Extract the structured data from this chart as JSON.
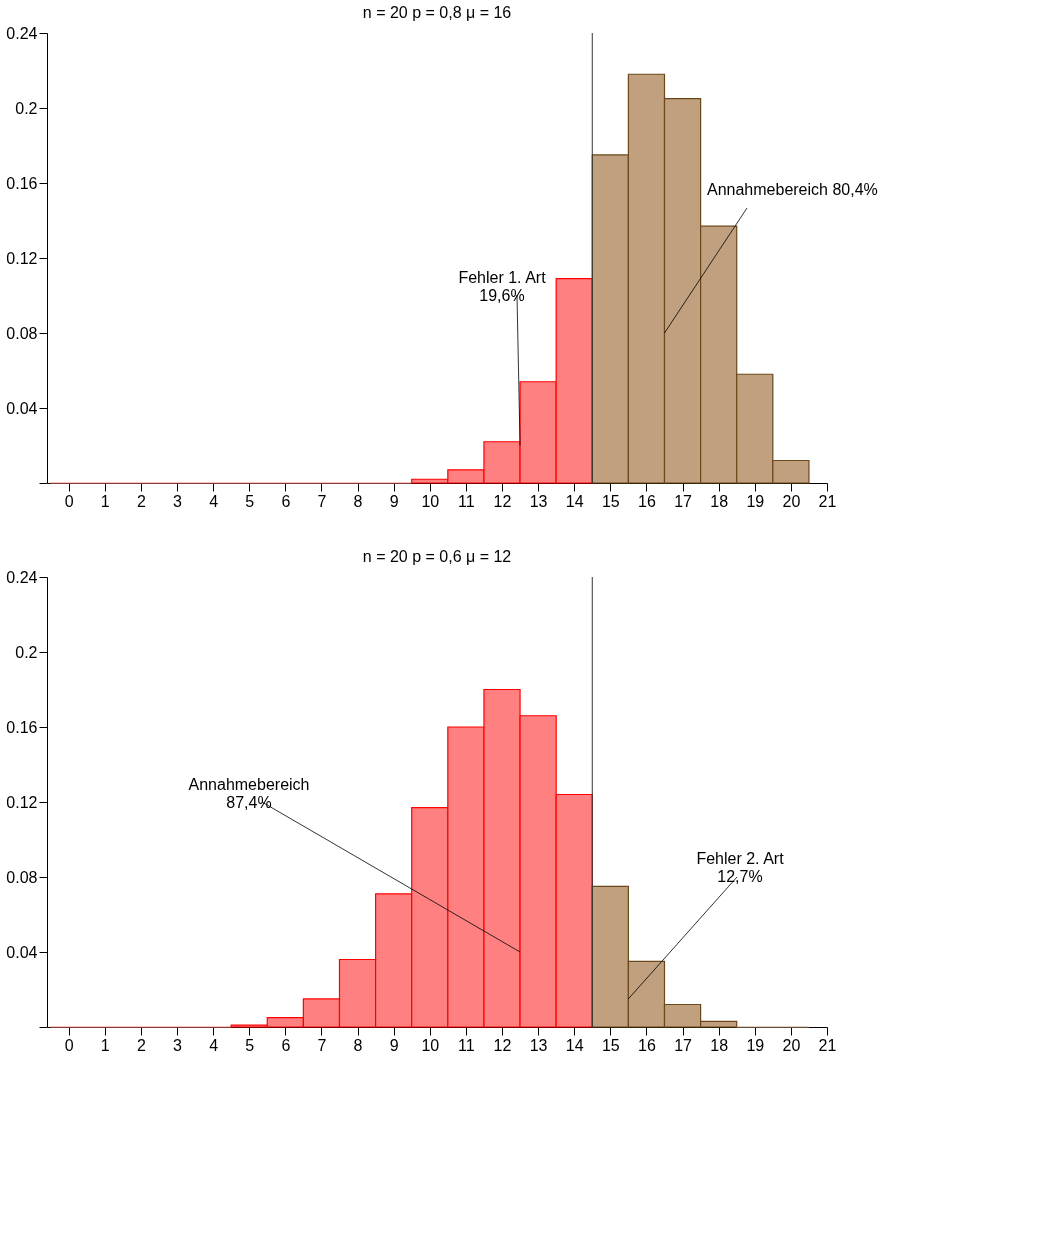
{
  "chart_data": [
    {
      "type": "bar",
      "title": "n = 20   p = 0,8   μ = 16",
      "x": [
        0,
        1,
        2,
        3,
        4,
        5,
        6,
        7,
        8,
        9,
        10,
        11,
        12,
        13,
        14,
        15,
        16,
        17,
        18,
        19,
        20
      ],
      "values": [
        0,
        0,
        0,
        0,
        0,
        0,
        0,
        0,
        0,
        0,
        0.002,
        0.007,
        0.022,
        0.054,
        0.109,
        0.175,
        0.218,
        0.205,
        0.137,
        0.058,
        0.012
      ],
      "colors": [
        "#ff8080",
        "#ff8080",
        "#ff8080",
        "#ff8080",
        "#ff8080",
        "#ff8080",
        "#ff8080",
        "#ff8080",
        "#ff8080",
        "#ff8080",
        "#ff8080",
        "#ff8080",
        "#ff8080",
        "#ff8080",
        "#ff8080",
        "#c1a07f",
        "#c1a07f",
        "#c1a07f",
        "#c1a07f",
        "#c1a07f",
        "#c1a07f"
      ],
      "xlim": [
        -0.6,
        21
      ],
      "xticks": [
        0,
        1,
        2,
        3,
        4,
        5,
        6,
        7,
        8,
        9,
        10,
        11,
        12,
        13,
        14,
        15,
        16,
        17,
        18,
        19,
        20,
        21
      ],
      "ylim": [
        0,
        0.24
      ],
      "yticks": [
        {
          "value": 0,
          "label": null
        },
        0.04,
        0.08,
        0.12,
        0.16,
        0.2,
        0.24
      ],
      "ref_lines": [
        {
          "axis": "x",
          "value": 14.5
        }
      ],
      "annotations": [
        {
          "text": "Fehler 1. Art\n19,6%",
          "x": 12.5,
          "y": 0.02
        },
        {
          "text": "Annahmebereich 80,4%",
          "x": 16.5,
          "y": 0.08
        }
      ],
      "grid": false
    },
    {
      "type": "bar",
      "title": "n = 20   p = 0,6   μ = 12",
      "x": [
        0,
        1,
        2,
        3,
        4,
        5,
        6,
        7,
        8,
        9,
        10,
        11,
        12,
        13,
        14,
        15,
        16,
        17,
        18,
        19,
        20
      ],
      "values": [
        0,
        0,
        0,
        0,
        0,
        0.001,
        0.005,
        0.015,
        0.036,
        0.071,
        0.117,
        0.16,
        0.18,
        0.166,
        0.124,
        0.075,
        0.035,
        0.012,
        0.003,
        0,
        0
      ],
      "colors": [
        "#ff8080",
        "#ff8080",
        "#ff8080",
        "#ff8080",
        "#ff8080",
        "#ff8080",
        "#ff8080",
        "#ff8080",
        "#ff8080",
        "#ff8080",
        "#ff8080",
        "#ff8080",
        "#ff8080",
        "#ff8080",
        "#ff8080",
        "#c1a07f",
        "#c1a07f",
        "#c1a07f",
        "#c1a07f",
        "#c1a07f",
        "#c1a07f"
      ],
      "xlim": [
        -0.6,
        21
      ],
      "xticks": [
        0,
        1,
        2,
        3,
        4,
        5,
        6,
        7,
        8,
        9,
        10,
        11,
        12,
        13,
        14,
        15,
        16,
        17,
        18,
        19,
        20,
        21
      ],
      "ylim": [
        0,
        0.24
      ],
      "yticks": [
        {
          "value": 0,
          "label": null
        },
        0.04,
        0.08,
        0.12,
        0.16,
        0.2,
        0.24
      ],
      "ref_lines": [
        {
          "axis": "x",
          "value": 14.5
        }
      ],
      "annotations": [
        {
          "text": "Annahmebereich\n87,4%",
          "x": 12.5,
          "y": 0.04
        },
        {
          "text": "Fehler 2. Art\n12,7%",
          "x": 15.5,
          "y": 0.015
        }
      ],
      "grid": false
    }
  ]
}
